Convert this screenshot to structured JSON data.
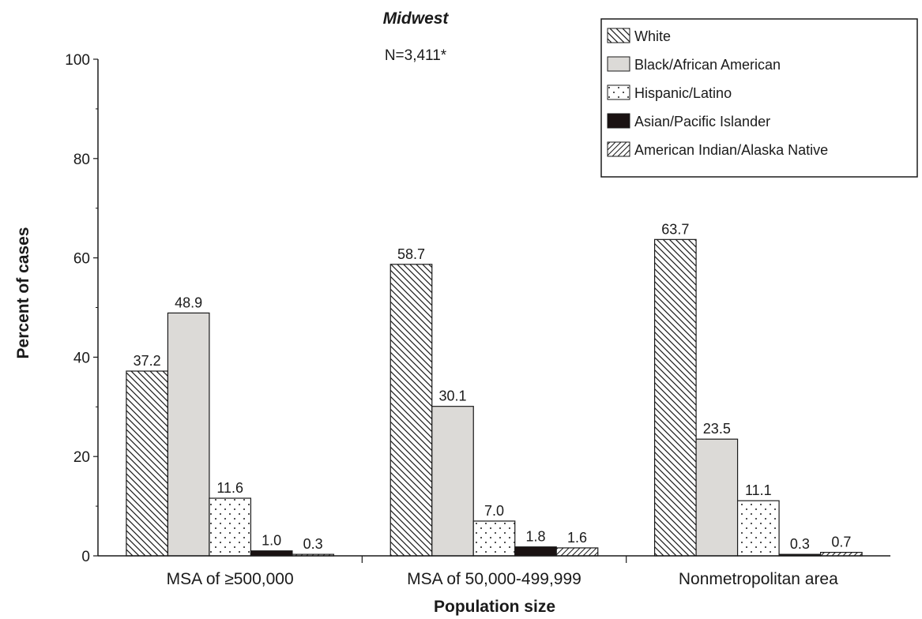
{
  "chart_data": {
    "type": "bar",
    "title": "Midwest",
    "subtitle": "N=3,411*",
    "xlabel": "Population size",
    "ylabel": "Percent of cases",
    "ylim": [
      0,
      100
    ],
    "yticks": [
      0,
      20,
      40,
      60,
      80,
      100
    ],
    "categories": [
      "MSA of ≥500,000",
      "MSA of 50,000-499,999",
      "Nonmetropolitan area"
    ],
    "series": [
      {
        "name": "White",
        "pattern": "diagonal-back",
        "values": [
          37.2,
          58.7,
          63.7
        ],
        "labels": [
          "37.2",
          "58.7",
          "63.7"
        ]
      },
      {
        "name": "Black/African American",
        "pattern": "solid-light-gray",
        "values": [
          48.9,
          30.1,
          23.5
        ],
        "labels": [
          "48.9",
          "30.1",
          "23.5"
        ]
      },
      {
        "name": "Hispanic/Latino",
        "pattern": "dots",
        "values": [
          11.6,
          7.0,
          11.1
        ],
        "labels": [
          "11.6",
          "7.0",
          "11.1"
        ]
      },
      {
        "name": "Asian/Pacific Islander",
        "pattern": "solid-black",
        "values": [
          1.0,
          1.8,
          0.3
        ],
        "labels": [
          "1.0",
          "1.8",
          "0.3"
        ]
      },
      {
        "name": "American Indian/Alaska Native",
        "pattern": "diagonal-forward",
        "values": [
          0.3,
          1.6,
          0.7
        ],
        "labels": [
          "0.3",
          "1.6",
          "0.7"
        ]
      }
    ],
    "legend_position": "top-right",
    "grid": false,
    "colors": {
      "light_gray": "#dcdad7",
      "black": "#1a1212",
      "ink": "#1a1a1a"
    }
  }
}
